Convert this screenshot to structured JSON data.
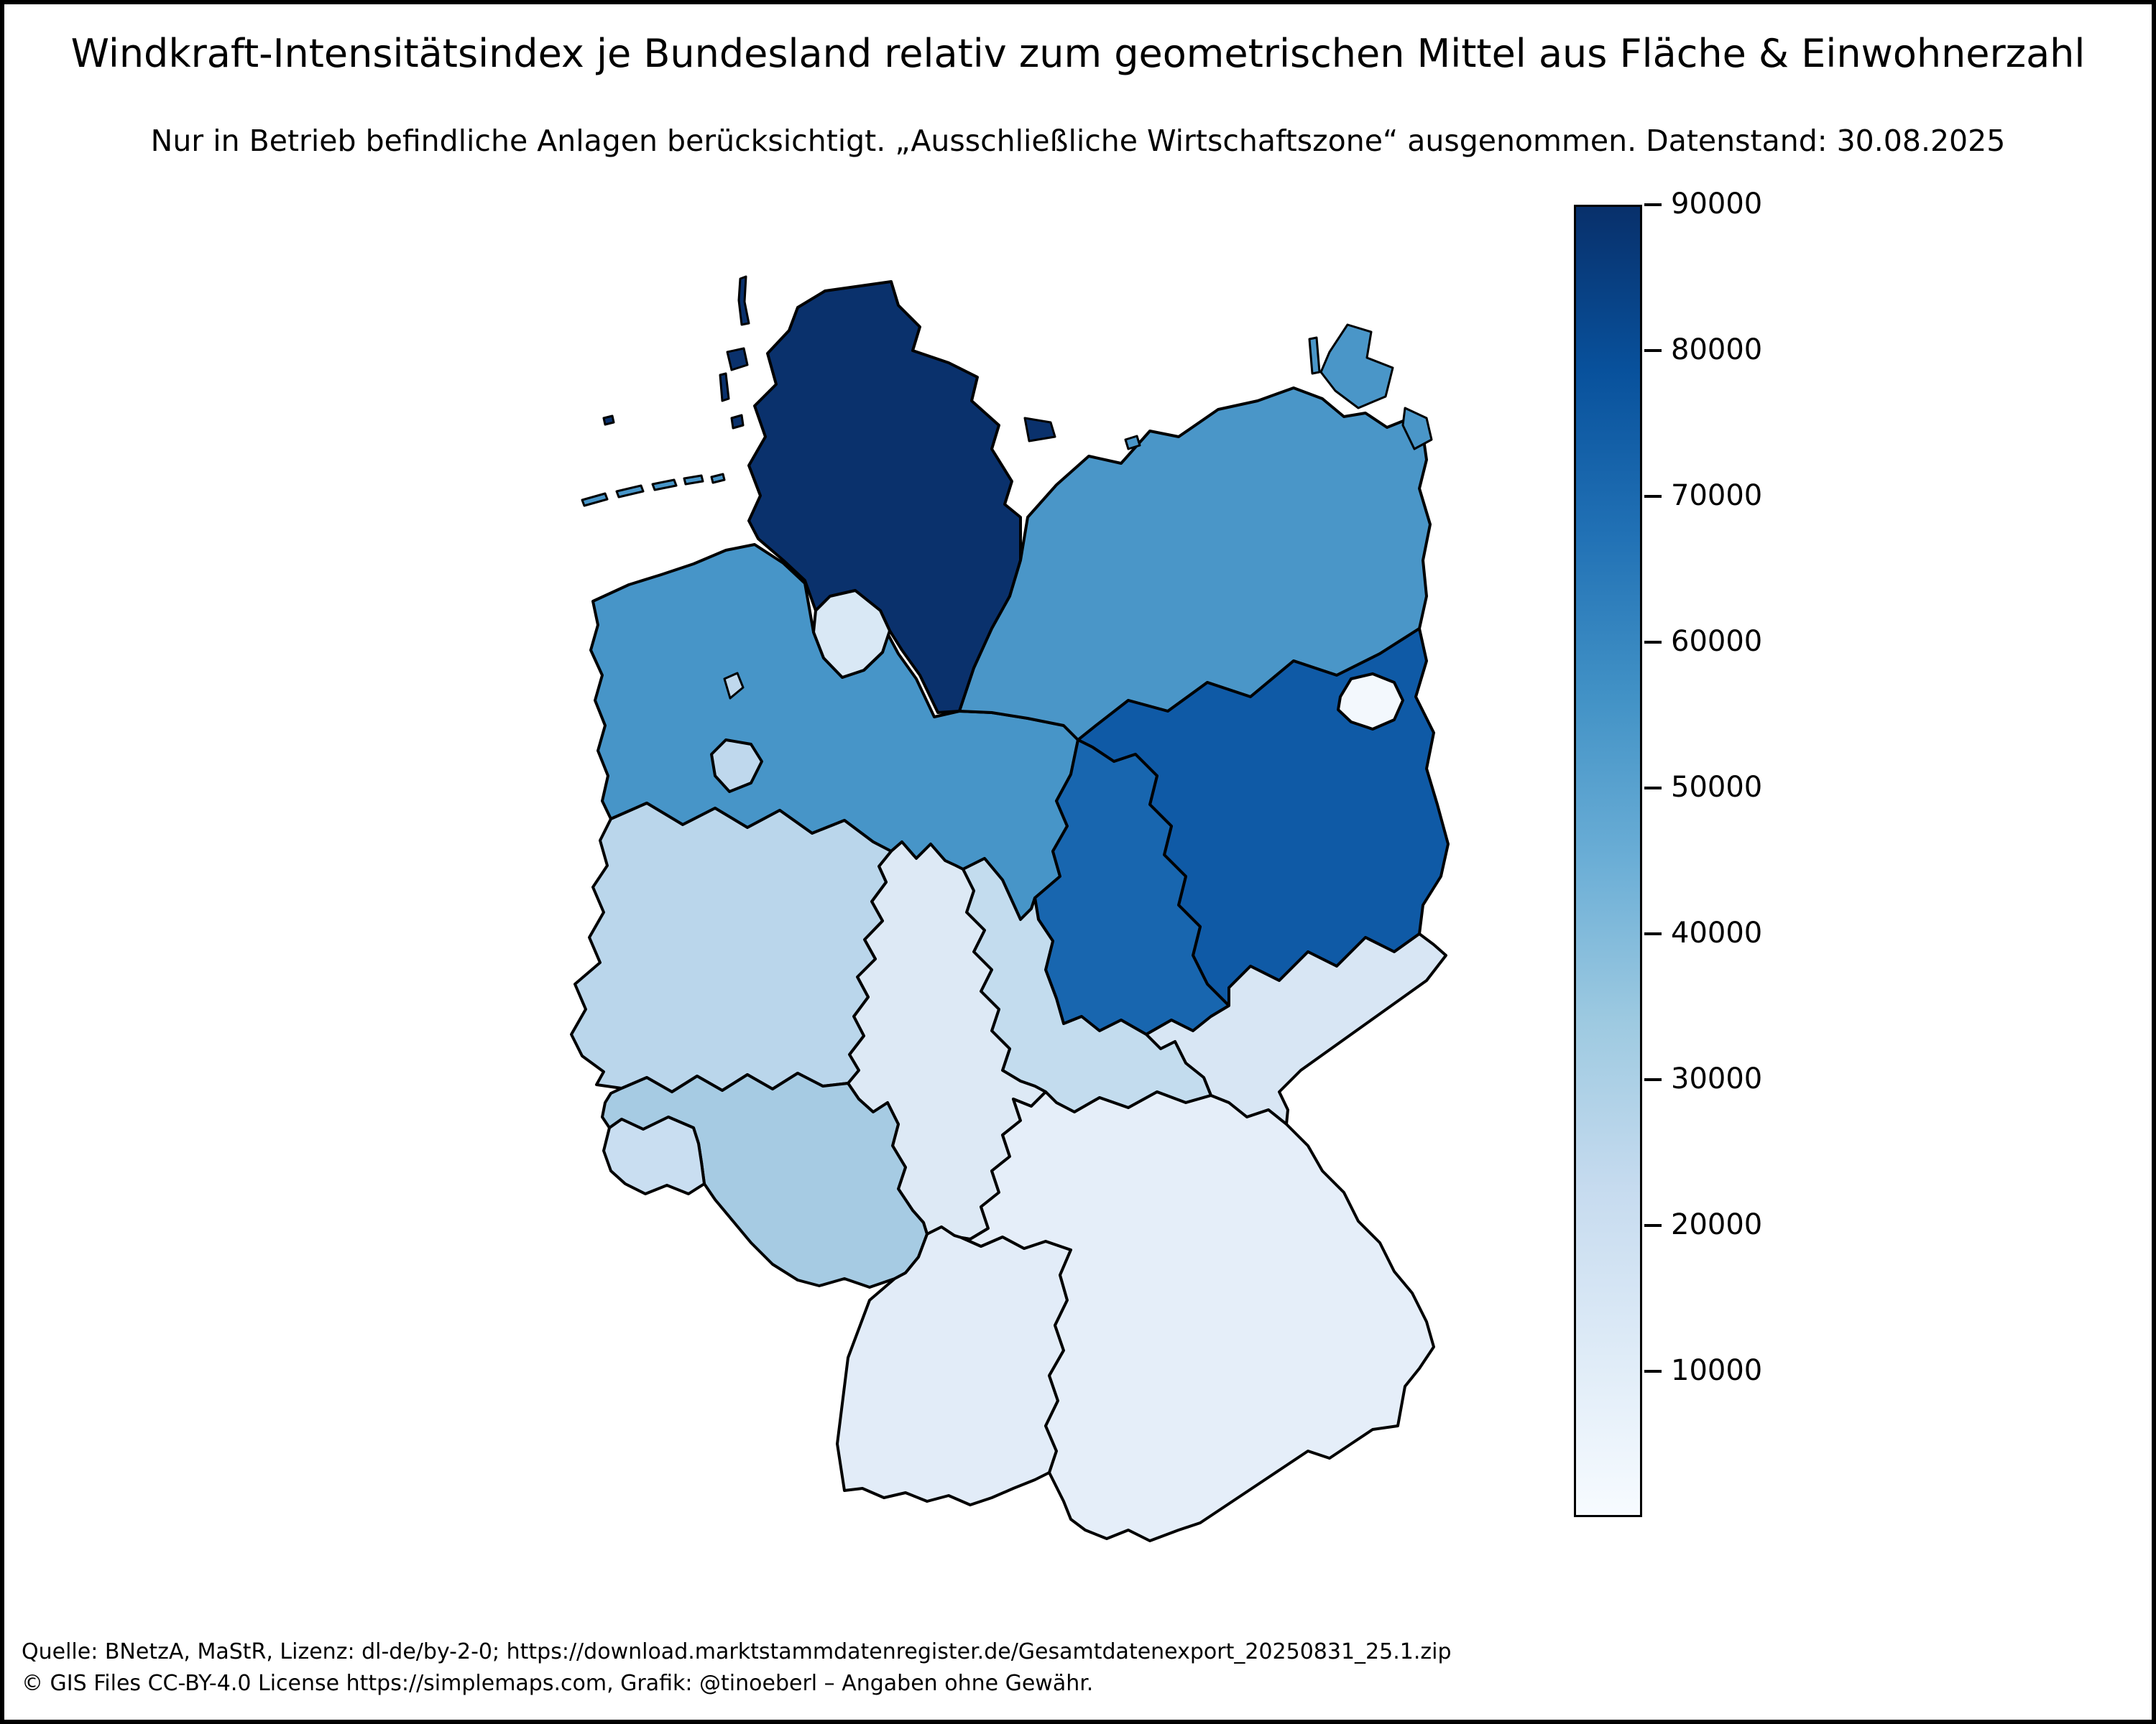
{
  "title": "Windkraft-Intensitätsindex je Bundesland relativ zum geometrischen Mittel aus Fläche & Einwohnerzahl",
  "subtitle": "Nur in Betrieb befindliche Anlagen berücksichtigt. „Ausschließliche Wirtschaftszone“ ausgenommen. Datenstand: 30.08.2025",
  "footer": {
    "line1": "Quelle: BNetzA, MaStR, Lizenz: dl-de/by-2-0; https://download.marktstammdatenregister.de/Gesamtdatenexport_20250831_25.1.zip",
    "line2": "© GIS Files CC-BY-4.0 License https://simplemaps.com, Grafik: @tinoeberl – Angaben ohne Gewähr."
  },
  "colorbar": {
    "min": 0,
    "max": 90000,
    "ticks": [
      90000,
      80000,
      70000,
      60000,
      50000,
      40000,
      30000,
      20000,
      10000
    ],
    "gradient_stops": [
      "#08306b",
      "#08519c",
      "#2171b5",
      "#4292c6",
      "#6baed6",
      "#9ecae1",
      "#c6dbef",
      "#deebf7",
      "#f7fbff"
    ],
    "border_color": "#000000"
  },
  "map": {
    "outline_color": "#000000",
    "state_colors": {
      "sh": "#0a316c",
      "mv": "#4a96c8",
      "ni": "#4795c8",
      "hh": "#d9e8f5",
      "hb": "#bfd8ed",
      "bb": "#0f5aa6",
      "be": "#f3f8fd",
      "st": "#1866af",
      "nw": "#bad6eb",
      "he": "#dde9f5",
      "th": "#c3dcee",
      "sn": "#d8e6f4",
      "rp": "#a6cbe3",
      "sl": "#c9def1",
      "bw": "#e2ecf8",
      "by": "#e5eef9"
    }
  },
  "chart_data": {
    "type": "choropleth_map",
    "region": "Germany — Bundesländer",
    "colormap": "Blues",
    "colorbar_range": [
      0,
      90000
    ],
    "colorbar_ticks": [
      10000,
      20000,
      30000,
      40000,
      50000,
      60000,
      70000,
      80000,
      90000
    ],
    "legend_position": "right vertical colorbar",
    "values_estimated_from_colorbar": true,
    "series": [
      {
        "name": "Schleswig-Holstein",
        "key": "sh",
        "value_approx": 90000,
        "color": "#0a316c"
      },
      {
        "name": "Brandenburg",
        "key": "bb",
        "value_approx": 76000,
        "color": "#0f5aa6"
      },
      {
        "name": "Sachsen-Anhalt",
        "key": "st",
        "value_approx": 71000,
        "color": "#1866af"
      },
      {
        "name": "Niedersachsen",
        "key": "ni",
        "value_approx": 55000,
        "color": "#4795c8"
      },
      {
        "name": "Mecklenburg-Vorpommern",
        "key": "mv",
        "value_approx": 54000,
        "color": "#4a96c8"
      },
      {
        "name": "Rheinland-Pfalz",
        "key": "rp",
        "value_approx": 31000,
        "color": "#a6cbe3"
      },
      {
        "name": "Nordrhein-Westfalen",
        "key": "nw",
        "value_approx": 26000,
        "color": "#bad6eb"
      },
      {
        "name": "Bremen",
        "key": "hb",
        "value_approx": 24000,
        "color": "#bfd8ed"
      },
      {
        "name": "Thüringen",
        "key": "th",
        "value_approx": 23000,
        "color": "#c3dcee"
      },
      {
        "name": "Saarland",
        "key": "sl",
        "value_approx": 20000,
        "color": "#c9def1"
      },
      {
        "name": "Sachsen",
        "key": "sn",
        "value_approx": 14500,
        "color": "#d8e6f4"
      },
      {
        "name": "Hamburg",
        "key": "hh",
        "value_approx": 13500,
        "color": "#d9e8f5"
      },
      {
        "name": "Hessen",
        "key": "he",
        "value_approx": 12500,
        "color": "#dde9f5"
      },
      {
        "name": "Baden-Württemberg",
        "key": "bw",
        "value_approx": 9000,
        "color": "#e2ecf8"
      },
      {
        "name": "Bayern",
        "key": "by",
        "value_approx": 8000,
        "color": "#e5eef9"
      },
      {
        "name": "Berlin",
        "key": "be",
        "value_approx": 2000,
        "color": "#f3f8fd"
      }
    ]
  }
}
